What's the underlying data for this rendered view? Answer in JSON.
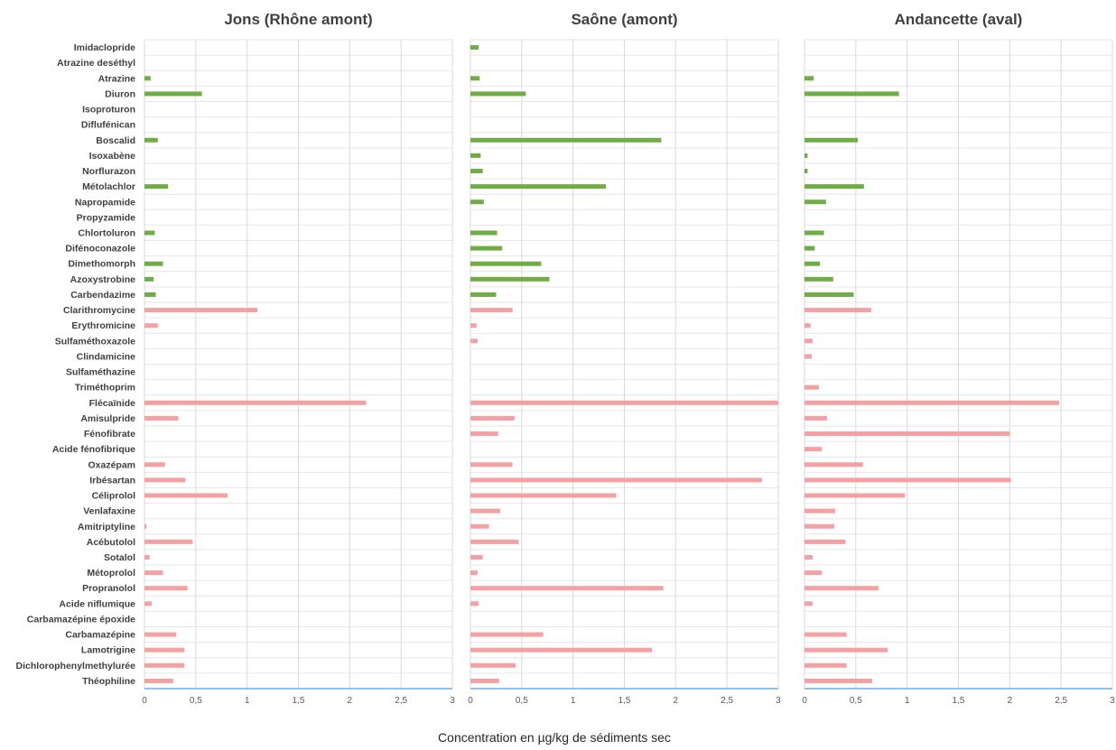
{
  "chart_data": {
    "type": "bar",
    "orientation": "horizontal",
    "xlabel": "Concentration en µg/kg de sédiments sec",
    "xlim": [
      0,
      3
    ],
    "xticks": [
      0,
      0.5,
      1,
      1.5,
      2,
      2.5,
      3
    ],
    "xtick_labels": [
      "0",
      "0,5",
      "1",
      "1,5",
      "2",
      "2,5",
      "3"
    ],
    "grid": true,
    "colors": {
      "pesticide": "#70ad47",
      "pharmaceutical": "#f4a1a3"
    },
    "categories": [
      "Imidaclopride",
      "Atrazine deséthyl",
      "Atrazine",
      "Diuron",
      "Isoproturon",
      "Diflufénican",
      "Boscalid",
      "Isoxabène",
      "Norflurazon",
      "Métolachlor",
      "Napropamide",
      "Propyzamide",
      "Chlortoluron",
      "Difénoconazole",
      "Dimethomorph",
      "Azoxystrobine",
      "Carbendazime",
      "Clarithromycine",
      "Erythromicine",
      "Sulfaméthoxazole",
      "Clindamicine",
      "Sulfaméthazine",
      "Triméthoprim",
      "Flécaïnide",
      "Amisulpride",
      "Fénofibrate",
      "Acide fénofibrique",
      "Oxazépam",
      "Irbésartan",
      "Céliprolol",
      "Venlafaxine",
      "Amitriptyline",
      "Acébutolol",
      "Sotalol",
      "Métoprolol",
      "Propranolol",
      "Acide niflumique",
      "Carbamazépine époxide",
      "Carbamazépine",
      "Lamotrigine",
      "Dichlorophenylmethylurée",
      "Théophiline"
    ],
    "category_group": [
      "pesticide",
      "pesticide",
      "pesticide",
      "pesticide",
      "pesticide",
      "pesticide",
      "pesticide",
      "pesticide",
      "pesticide",
      "pesticide",
      "pesticide",
      "pesticide",
      "pesticide",
      "pesticide",
      "pesticide",
      "pesticide",
      "pesticide",
      "pharmaceutical",
      "pharmaceutical",
      "pharmaceutical",
      "pharmaceutical",
      "pharmaceutical",
      "pharmaceutical",
      "pharmaceutical",
      "pharmaceutical",
      "pharmaceutical",
      "pharmaceutical",
      "pharmaceutical",
      "pharmaceutical",
      "pharmaceutical",
      "pharmaceutical",
      "pharmaceutical",
      "pharmaceutical",
      "pharmaceutical",
      "pharmaceutical",
      "pharmaceutical",
      "pharmaceutical",
      "pharmaceutical",
      "pharmaceutical",
      "pharmaceutical",
      "pharmaceutical",
      "pharmaceutical"
    ],
    "panels": [
      {
        "title": "Jons (Rhône amont)",
        "values": [
          0,
          0,
          0.06,
          0.56,
          0,
          0,
          0.13,
          0,
          0,
          0.23,
          0,
          0,
          0.1,
          0,
          0.18,
          0.09,
          0.11,
          1.1,
          0.13,
          0,
          0,
          0,
          0,
          2.16,
          0.33,
          0,
          0,
          0.2,
          0.4,
          0.81,
          0,
          0.02,
          0.47,
          0.05,
          0.18,
          0.42,
          0.07,
          0,
          0.31,
          0.39,
          0.39,
          0.28
        ]
      },
      {
        "title": "Saône (amont)",
        "values": [
          0.08,
          0,
          0.09,
          0.54,
          0,
          0,
          1.86,
          0.1,
          0.12,
          1.32,
          0.13,
          0,
          0.26,
          0.31,
          0.69,
          0.77,
          0.25,
          0.41,
          0.06,
          0.07,
          0,
          0,
          0,
          3.0,
          0.43,
          0.27,
          0,
          0.41,
          2.84,
          1.42,
          0.29,
          0.18,
          0.47,
          0.12,
          0.07,
          1.88,
          0.08,
          0,
          0.71,
          1.77,
          0.44,
          0.28
        ]
      },
      {
        "title": "Andancette (aval)",
        "values": [
          0,
          0,
          0.09,
          0.92,
          0,
          0,
          0.52,
          0.03,
          0.03,
          0.58,
          0.21,
          0,
          0.19,
          0.1,
          0.15,
          0.28,
          0.48,
          0.65,
          0.06,
          0.08,
          0.07,
          0,
          0.14,
          2.48,
          0.22,
          2.0,
          0.17,
          0.57,
          2.01,
          0.98,
          0.3,
          0.29,
          0.4,
          0.08,
          0.17,
          0.72,
          0.08,
          0,
          0.41,
          0.81,
          0.41,
          0.66
        ]
      }
    ]
  }
}
